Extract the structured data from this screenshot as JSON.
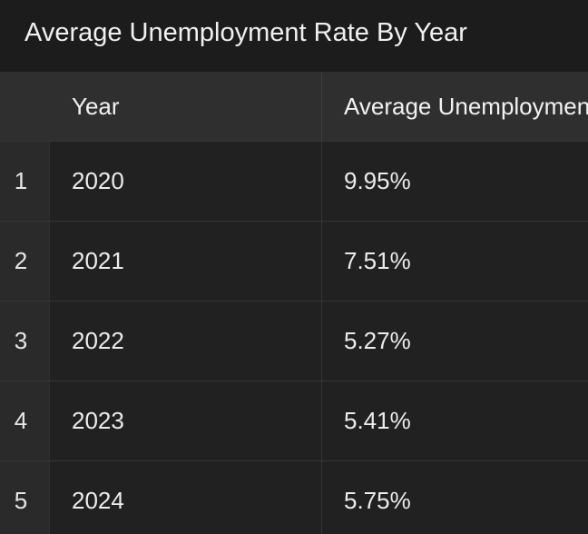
{
  "title": "Average Unemployment Rate By Year",
  "table": {
    "headers": {
      "index": "",
      "year": "Year",
      "rate": "Average Unemployment Rate"
    },
    "rows": [
      {
        "index": "1",
        "year": "2020",
        "rate": "9.95%"
      },
      {
        "index": "2",
        "year": "2021",
        "rate": "7.51%"
      },
      {
        "index": "3",
        "year": "2022",
        "rate": "5.27%"
      },
      {
        "index": "4",
        "year": "2023",
        "rate": "5.41%"
      },
      {
        "index": "5",
        "year": "2024",
        "rate": "5.75%"
      }
    ]
  },
  "colors": {
    "background": "#212121",
    "header_background": "#2f2f2f",
    "text": "#ececec"
  }
}
